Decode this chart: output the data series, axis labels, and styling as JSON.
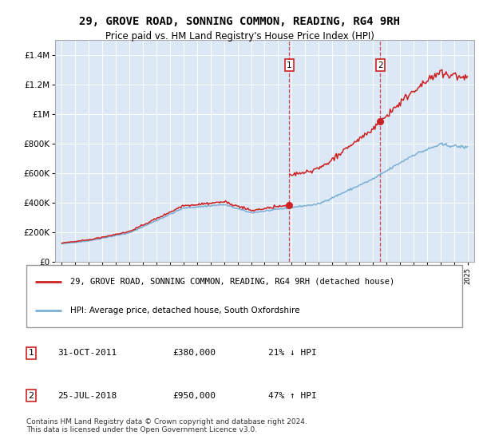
{
  "title": "29, GROVE ROAD, SONNING COMMON, READING, RG4 9RH",
  "subtitle": "Price paid vs. HM Land Registry's House Price Index (HPI)",
  "background_color": "white",
  "plot_bg_color": "#dce8f5",
  "legend_label_red": "29, GROVE ROAD, SONNING COMMON, READING, RG4 9RH (detached house)",
  "legend_label_blue": "HPI: Average price, detached house, South Oxfordshire",
  "footer": "Contains HM Land Registry data © Crown copyright and database right 2024.\nThis data is licensed under the Open Government Licence v3.0.",
  "ann1_label": "1",
  "ann1_date": "31-OCT-2011",
  "ann1_price": "£380,000",
  "ann1_pct": "21% ↓ HPI",
  "ann1_x": 2011.83,
  "ann1_y": 380000,
  "ann2_label": "2",
  "ann2_date": "25-JUL-2018",
  "ann2_price": "£950,000",
  "ann2_pct": "47% ↑ HPI",
  "ann2_x": 2018.56,
  "ann2_y": 950000,
  "ylabel_ticks": [
    "£0",
    "£200K",
    "£400K",
    "£600K",
    "£800K",
    "£1M",
    "£1.2M",
    "£1.4M"
  ],
  "ytick_values": [
    0,
    200000,
    400000,
    600000,
    800000,
    1000000,
    1200000,
    1400000
  ],
  "ylim": [
    0,
    1500000
  ],
  "xlim": [
    1994.5,
    2025.5
  ],
  "red_color": "#cc2222",
  "blue_color": "#7bafd4"
}
